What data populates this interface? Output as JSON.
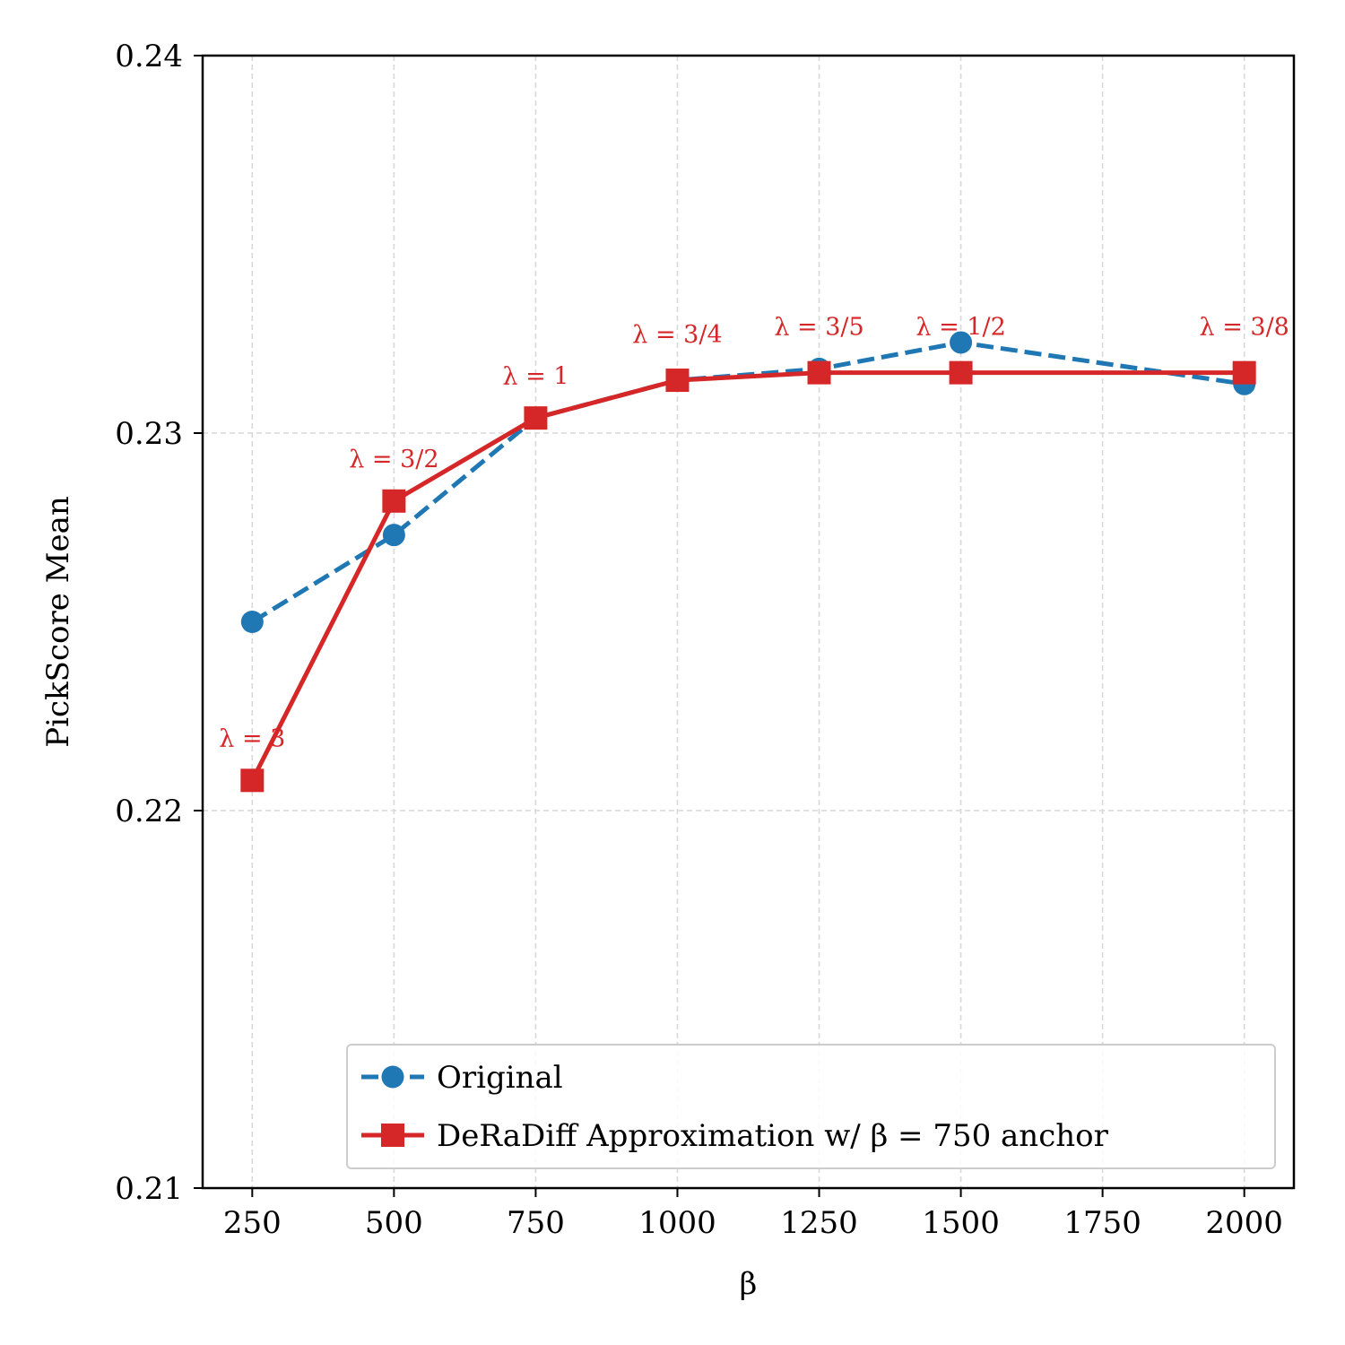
{
  "chart_data": {
    "type": "line",
    "title": "",
    "xlabel": "β",
    "ylabel": "PickScore Mean",
    "x": [
      250,
      500,
      750,
      1000,
      1250,
      1500,
      2000
    ],
    "xlim": [
      162.5,
      2087.5
    ],
    "ylim": [
      0.21,
      0.24
    ],
    "xticks": [
      250,
      500,
      750,
      1000,
      1250,
      1500,
      1750,
      2000
    ],
    "xtick_labels": [
      "250",
      "500",
      "750",
      "1000",
      "1250",
      "1500",
      "1750",
      "2000"
    ],
    "yticks": [
      0.21,
      0.22,
      0.23,
      0.24
    ],
    "ytick_labels": [
      "0.21",
      "0.22",
      "0.23",
      "0.24"
    ],
    "grid": true,
    "legend_position": "lower-right",
    "series": [
      {
        "name": "Original",
        "color": "#1f77b4",
        "linestyle": "dashed",
        "marker": "circle",
        "values": [
          0.225,
          0.2273,
          0.2304,
          0.2314,
          0.2317,
          0.2324,
          0.2313
        ]
      },
      {
        "name": "DeRaDiff Approximation w/ β = 750 anchor",
        "color": "#d62728",
        "linestyle": "solid",
        "marker": "square",
        "values": [
          0.2208,
          0.2282,
          0.2304,
          0.2314,
          0.2316,
          0.2316,
          0.2316
        ]
      }
    ],
    "annotations": [
      {
        "text": "λ = 3",
        "x": 250,
        "y": 0.2217
      },
      {
        "text": "λ = 3/2",
        "x": 500,
        "y": 0.2291
      },
      {
        "text": "λ = 1",
        "x": 750,
        "y": 0.2313
      },
      {
        "text": "λ = 3/4",
        "x": 1000,
        "y": 0.2324
      },
      {
        "text": "λ = 3/5",
        "x": 1250,
        "y": 0.2326
      },
      {
        "text": "λ = 1/2",
        "x": 1500,
        "y": 0.2326
      },
      {
        "text": "λ = 3/8",
        "x": 2000,
        "y": 0.2326
      }
    ]
  }
}
